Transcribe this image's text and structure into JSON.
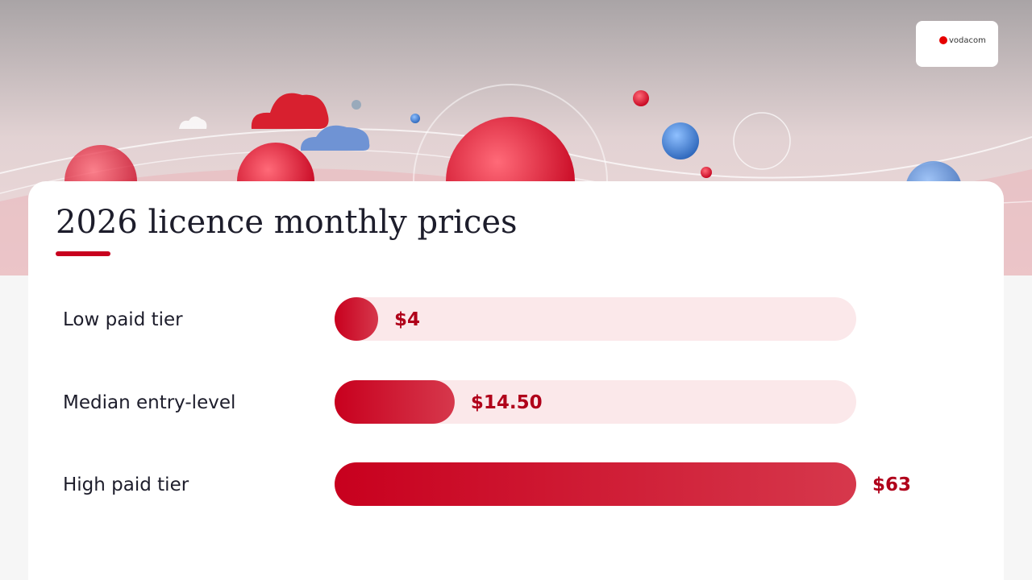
{
  "logo_text": "vodacom",
  "chart_data": {
    "type": "bar",
    "orientation": "horizontal",
    "title": "2026 licence monthly prices",
    "categories": [
      "Low paid tier",
      "Median entry-level",
      "High paid tier"
    ],
    "values": [
      4,
      14.5,
      63
    ],
    "value_labels": [
      "$4",
      "$14.50",
      "$63"
    ],
    "color": "#c8001e",
    "track_color": "#fbe8ea",
    "xlim": [
      0,
      63
    ]
  }
}
